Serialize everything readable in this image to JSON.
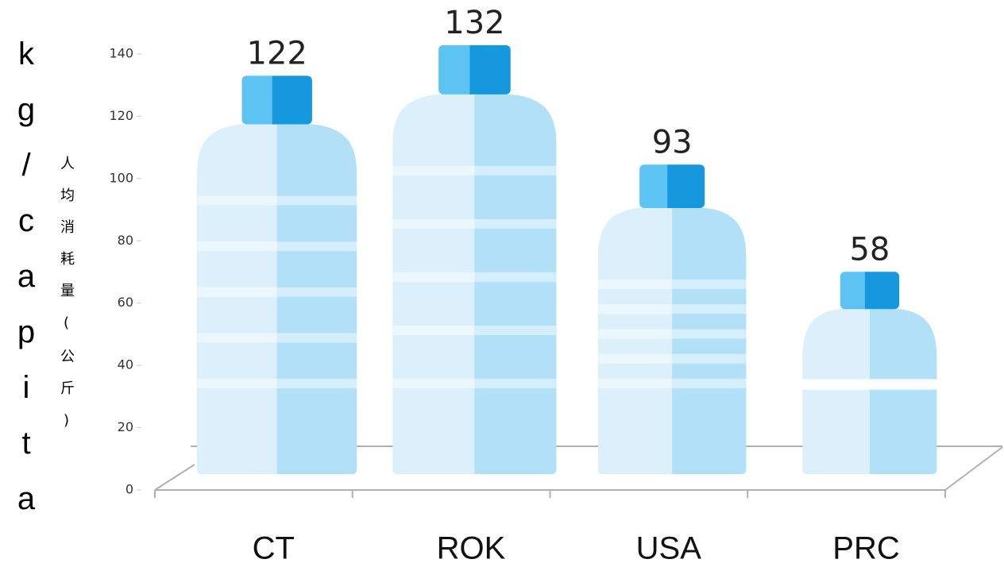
{
  "chart_data": {
    "type": "bottle",
    "ylabel": "kg/capita",
    "ylabel_zh": "人均消耗量(公斤)",
    "categories": [
      "CT",
      "ROK",
      "USA",
      "PRC"
    ],
    "values": [
      122,
      132,
      93,
      58
    ],
    "ylim": [
      0,
      140
    ],
    "yticks": [
      0,
      20,
      40,
      60,
      80,
      100,
      120,
      140
    ],
    "colors": {
      "cap_light": "#5cc3f2",
      "cap_dark": "#1598dd",
      "body_light": "#dcf0fb",
      "body_dark": "#b2e0f7"
    }
  }
}
